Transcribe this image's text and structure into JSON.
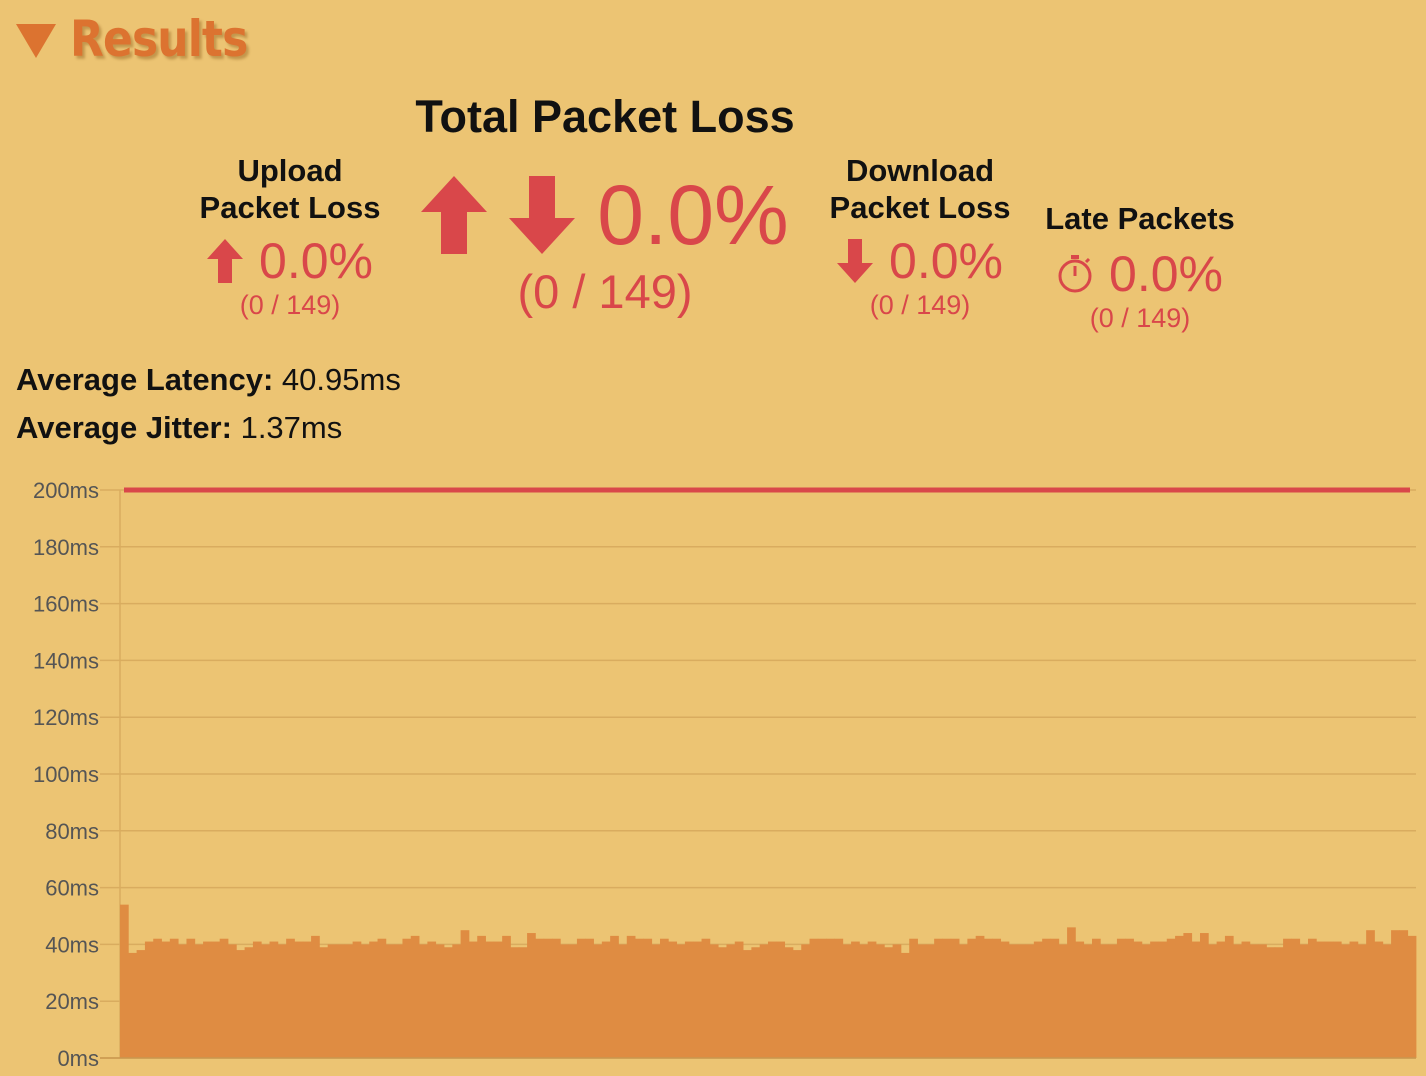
{
  "section": {
    "title": "Results"
  },
  "total": {
    "label": "Total Packet Loss",
    "value": "0.0%",
    "fraction": "(0 / 149)"
  },
  "upload": {
    "label_line1": "Upload",
    "label_line2": "Packet Loss",
    "value": "0.0%",
    "fraction": "(0 / 149)"
  },
  "download": {
    "label_line1": "Download",
    "label_line2": "Packet Loss",
    "value": "0.0%",
    "fraction": "(0 / 149)"
  },
  "late": {
    "label": "Late Packets",
    "value": "0.0%",
    "fraction": "(0 / 149)"
  },
  "averages": {
    "latency_label": "Average Latency:",
    "latency_value": "40.95ms",
    "jitter_label": "Average Jitter:",
    "jitter_value": "1.37ms"
  },
  "colors": {
    "accent": "#dc7330",
    "loss": "#d9474a",
    "bar": "#df8c42",
    "background": "#ecc473",
    "grid": "#d9ac5f"
  },
  "icons": {
    "upload": "arrow-up-icon",
    "download": "arrow-down-icon",
    "late": "stopwatch-icon"
  },
  "chart_data": {
    "type": "bar",
    "ylabel": "",
    "ylim": [
      0,
      200
    ],
    "yticks": [
      "0ms",
      "20ms",
      "40ms",
      "60ms",
      "80ms",
      "100ms",
      "120ms",
      "140ms",
      "160ms",
      "180ms",
      "200ms"
    ],
    "threshold": 200,
    "values": [
      54,
      37,
      38,
      41,
      42,
      41,
      42,
      40,
      42,
      40,
      41,
      41,
      42,
      40,
      38,
      39,
      41,
      40,
      41,
      40,
      42,
      41,
      41,
      43,
      39,
      40,
      40,
      40,
      41,
      40,
      41,
      42,
      40,
      40,
      42,
      43,
      40,
      41,
      40,
      39,
      40,
      45,
      41,
      43,
      41,
      41,
      43,
      39,
      39,
      44,
      42,
      42,
      42,
      40,
      40,
      42,
      42,
      40,
      41,
      43,
      40,
      43,
      42,
      42,
      40,
      42,
      41,
      40,
      41,
      41,
      42,
      40,
      39,
      40,
      41,
      38,
      39,
      40,
      41,
      41,
      39,
      38,
      40,
      42,
      42,
      42,
      42,
      40,
      41,
      40,
      41,
      40,
      39,
      40,
      37,
      42,
      40,
      40,
      42,
      42,
      42,
      40,
      42,
      43,
      42,
      42,
      41,
      40,
      40,
      40,
      41,
      42,
      42,
      40,
      46,
      41,
      40,
      42,
      40,
      40,
      42,
      42,
      41,
      40,
      41,
      41,
      42,
      43,
      44,
      41,
      44,
      40,
      41,
      43,
      40,
      41,
      40,
      40,
      39,
      39,
      42,
      42,
      40,
      42,
      41,
      41,
      41,
      40,
      41,
      40,
      45,
      41,
      40,
      45,
      45,
      43
    ]
  }
}
